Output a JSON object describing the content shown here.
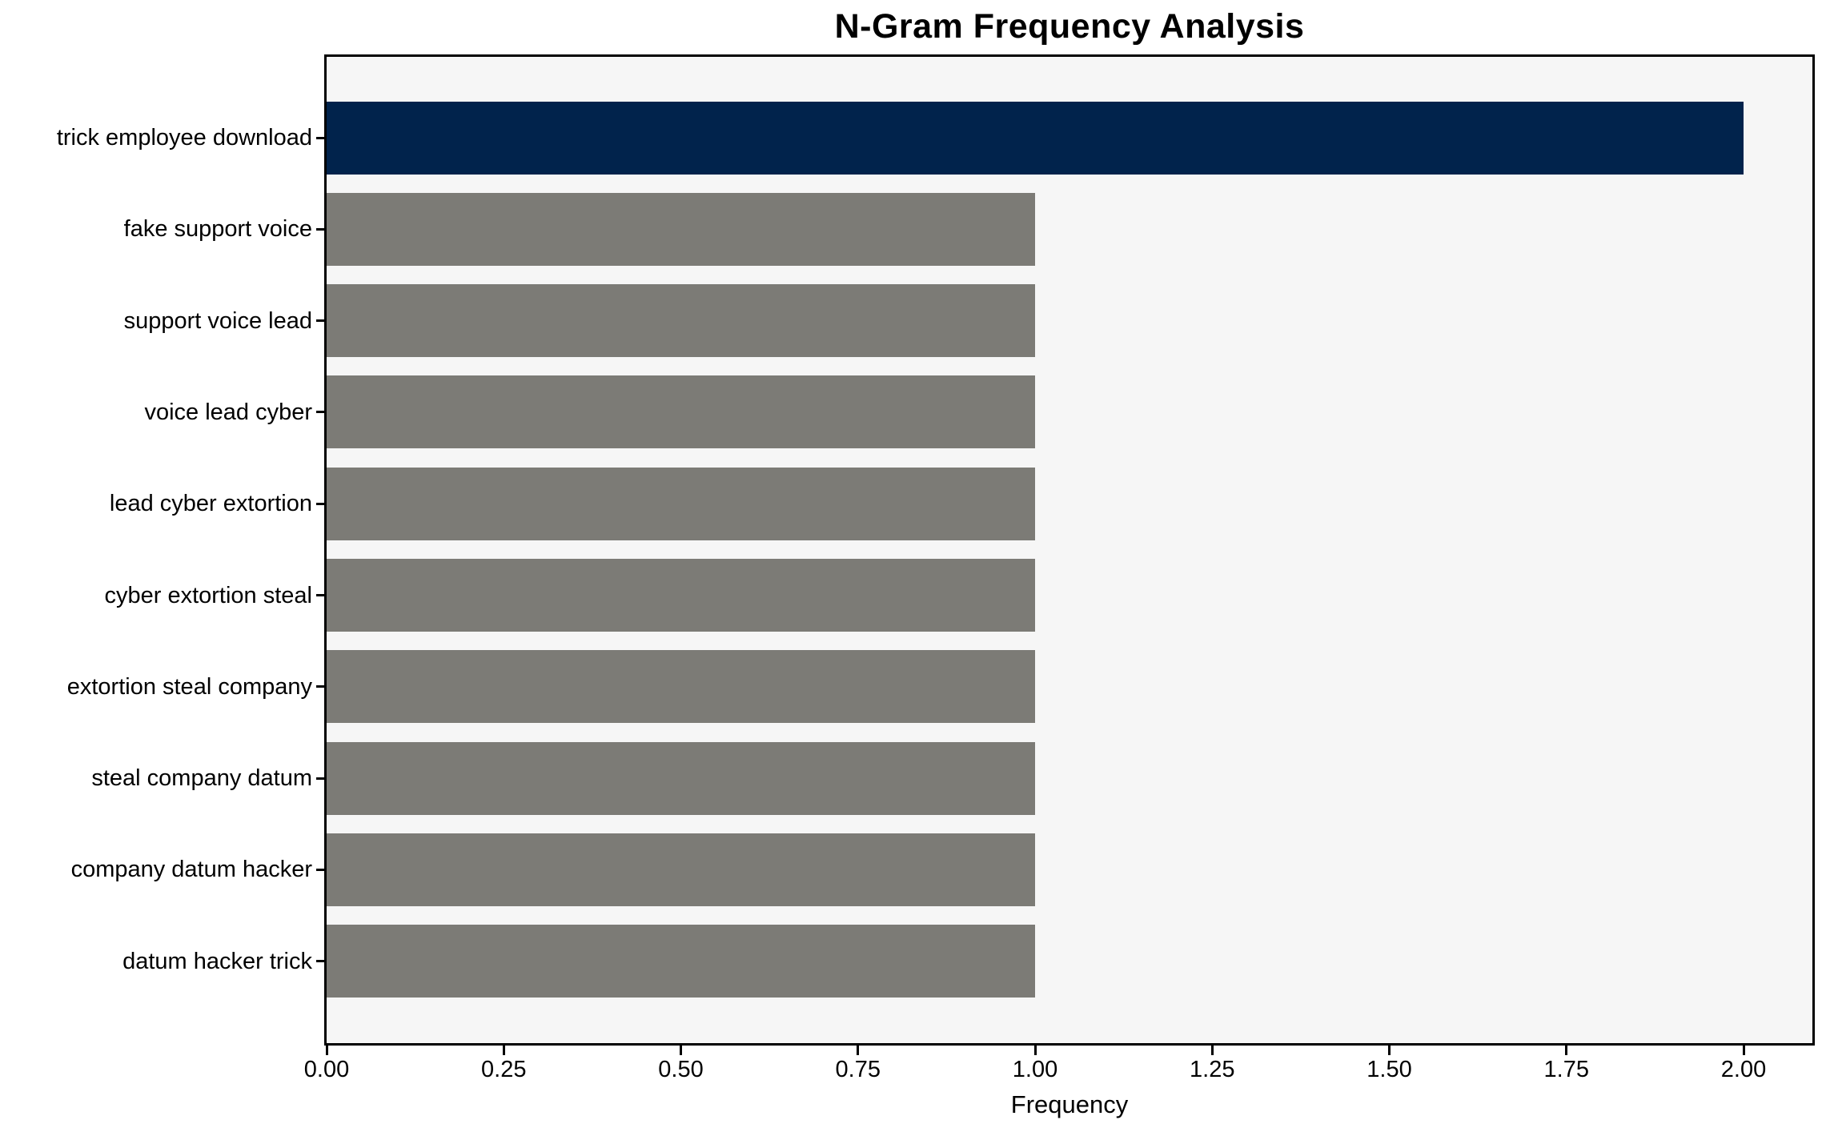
{
  "chart_data": {
    "type": "bar",
    "orientation": "horizontal",
    "title": "N-Gram Frequency Analysis",
    "xlabel": "Frequency",
    "ylabel": "",
    "categories": [
      "trick employee download",
      "fake support voice",
      "support voice lead",
      "voice lead cyber",
      "lead cyber extortion",
      "cyber extortion steal",
      "extortion steal company",
      "steal company datum",
      "company datum hacker",
      "datum hacker trick"
    ],
    "values": [
      2.0,
      1.0,
      1.0,
      1.0,
      1.0,
      1.0,
      1.0,
      1.0,
      1.0,
      1.0
    ],
    "bar_colors": [
      "#01234c",
      "#7c7b76",
      "#7c7b76",
      "#7c7b76",
      "#7c7b76",
      "#7c7b76",
      "#7c7b76",
      "#7c7b76",
      "#7c7b76",
      "#7c7b76"
    ],
    "xlim": [
      0,
      2.1
    ],
    "xtick_values": [
      0.0,
      0.25,
      0.5,
      0.75,
      1.0,
      1.25,
      1.5,
      1.75,
      2.0
    ],
    "xtick_labels": [
      "0.00",
      "0.25",
      "0.50",
      "0.75",
      "1.00",
      "1.25",
      "1.50",
      "1.75",
      "2.00"
    ],
    "grid": false,
    "legend": null,
    "colors": {
      "highlight_bar": "#01234c",
      "default_bar": "#7c7b76",
      "plot_background": "#f6f6f6",
      "figure_background": "#ffffff",
      "axis_frame": "#000000",
      "text": "#000000"
    }
  }
}
